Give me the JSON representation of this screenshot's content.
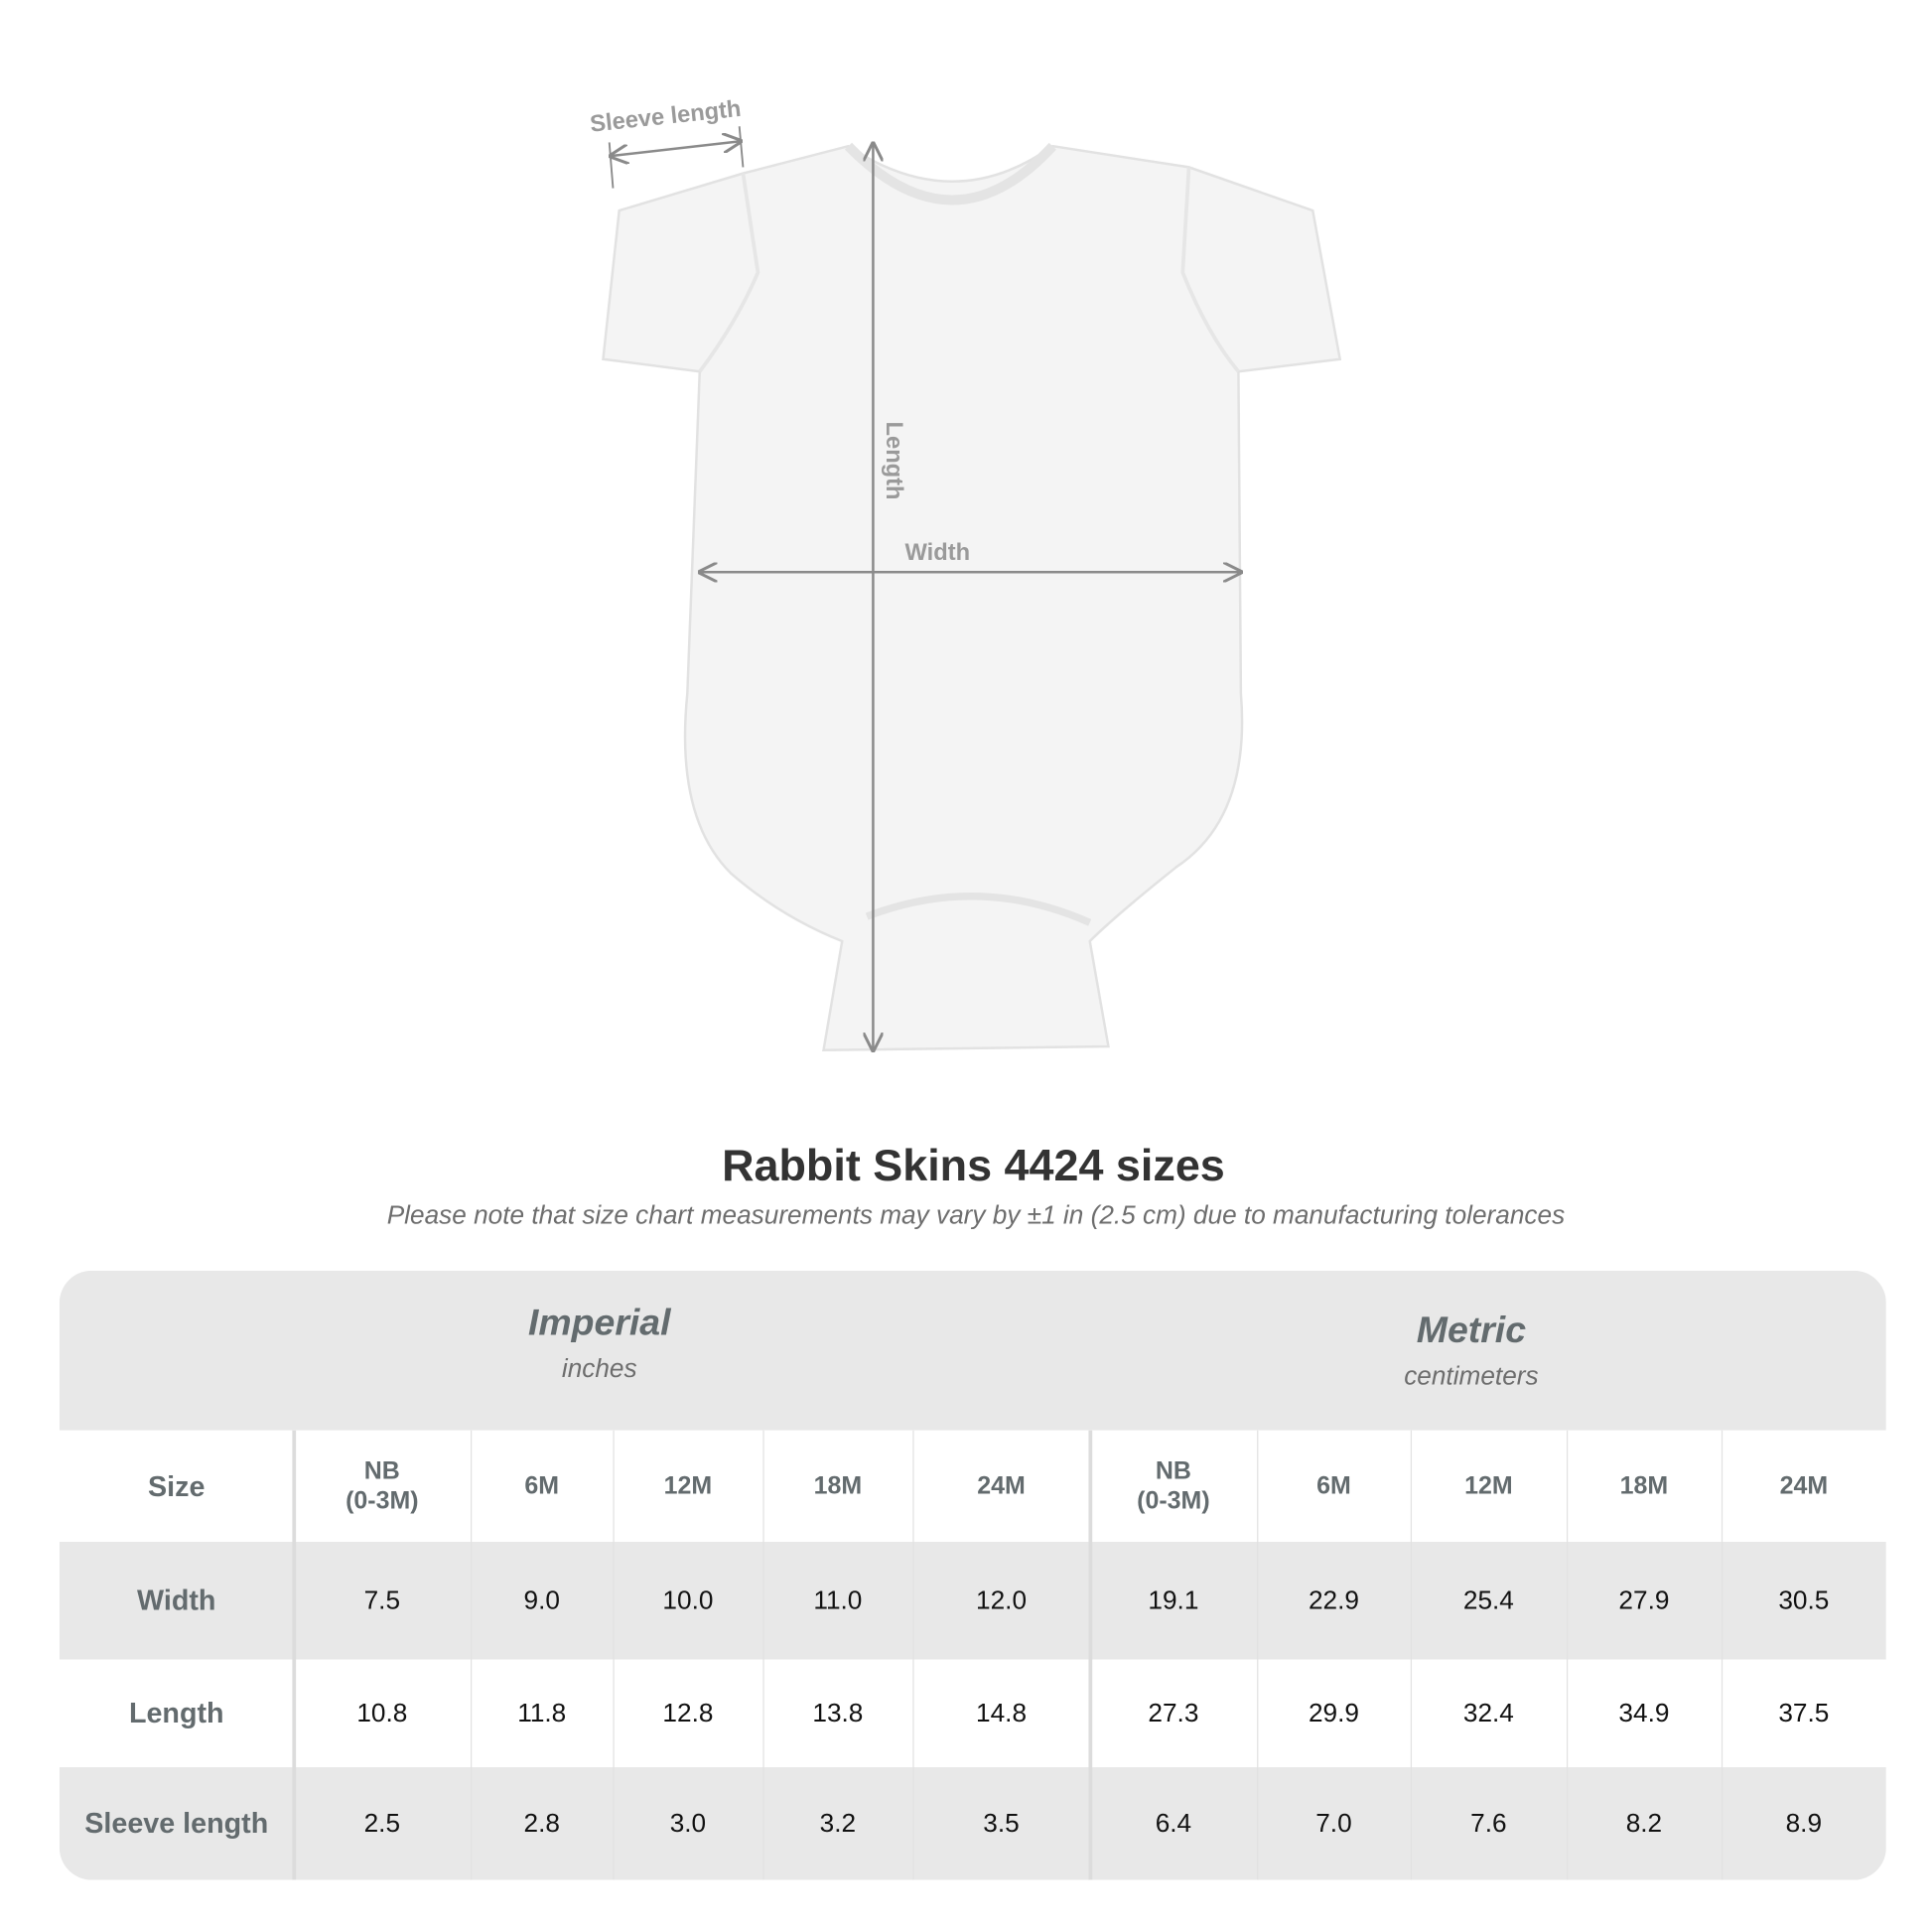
{
  "diagram": {
    "sleeve_label": "Sleeve length",
    "length_label": "Length",
    "width_label": "Width"
  },
  "title": "Rabbit Skins 4424 sizes",
  "subtitle": "Please note that size chart measurements may vary by ±1 in (2.5 cm) due to manufacturing tolerances",
  "table": {
    "imperial": {
      "name": "Imperial",
      "unit": "inches"
    },
    "metric": {
      "name": "Metric",
      "unit": "centimeters"
    },
    "size_label": "Size",
    "sizes": [
      "NB\n(0-3M)",
      "6M",
      "12M",
      "18M",
      "24M",
      "NB\n(0-3M)",
      "6M",
      "12M",
      "18M",
      "24M"
    ],
    "rows": [
      {
        "label": "Width",
        "values": [
          "7.5",
          "9.0",
          "10.0",
          "11.0",
          "12.0",
          "19.1",
          "22.9",
          "25.4",
          "27.9",
          "30.5"
        ]
      },
      {
        "label": "Length",
        "values": [
          "10.8",
          "11.8",
          "12.8",
          "13.8",
          "14.8",
          "27.3",
          "29.9",
          "32.4",
          "34.9",
          "37.5"
        ]
      },
      {
        "label": "Sleeve length",
        "values": [
          "2.5",
          "2.8",
          "3.0",
          "3.2",
          "3.5",
          "6.4",
          "7.0",
          "7.6",
          "8.2",
          "8.9"
        ]
      }
    ]
  }
}
